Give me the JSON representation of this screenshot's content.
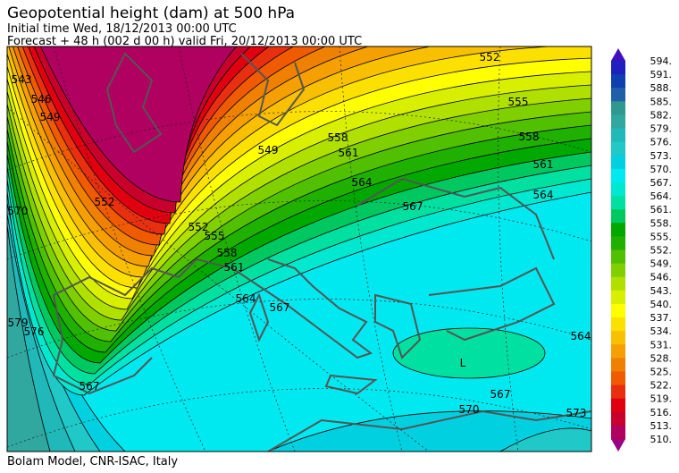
{
  "header": {
    "title": "Geopotential height (dam) at 500 hPa",
    "initial": "Initial time  Wed, 18/12/2013  00:00 UTC",
    "forecast": "Forecast  +  48 h  (002 d 00 h)  valid Fri, 20/12/2013 00:00 UTC"
  },
  "colorbar": {
    "labels": [
      "594.",
      "591.",
      "588.",
      "585.",
      "582.",
      "579.",
      "576.",
      "573.",
      "570.",
      "567.",
      "564.",
      "561.",
      "558.",
      "555.",
      "552.",
      "549.",
      "546.",
      "543.",
      "540.",
      "537.",
      "534.",
      "531.",
      "528.",
      "525.",
      "522.",
      "519.",
      "516.",
      "513.",
      "510."
    ],
    "colors": [
      "#2020c0",
      "#1040b0",
      "#2060a8",
      "#309890",
      "#30a8a0",
      "#20b8b8",
      "#20c8c8",
      "#00d0e0",
      "#00e8f0",
      "#00e8d0",
      "#00e0a0",
      "#00c860",
      "#00a800",
      "#20b000",
      "#50c000",
      "#80d000",
      "#b0e000",
      "#d8f000",
      "#ffff00",
      "#fce000",
      "#f8c000",
      "#f5a000",
      "#f08000",
      "#f05a00",
      "#e83010",
      "#e00010",
      "#c8002c",
      "#b00060"
    ],
    "above_color": "#4010c0",
    "below_color": "#9a0080"
  },
  "map": {
    "contour_labels": [
      "552",
      "555",
      "558",
      "561",
      "564",
      "567",
      "564",
      "561",
      "558",
      "555",
      "552",
      "549",
      "546",
      "543",
      "549",
      "552",
      "567",
      "564",
      "561",
      "558",
      "570",
      "567",
      "570",
      "576",
      "579",
      "567",
      "573",
      "564",
      "L"
    ]
  },
  "footer": "Bolam Model, CNR-ISAC, Italy"
}
